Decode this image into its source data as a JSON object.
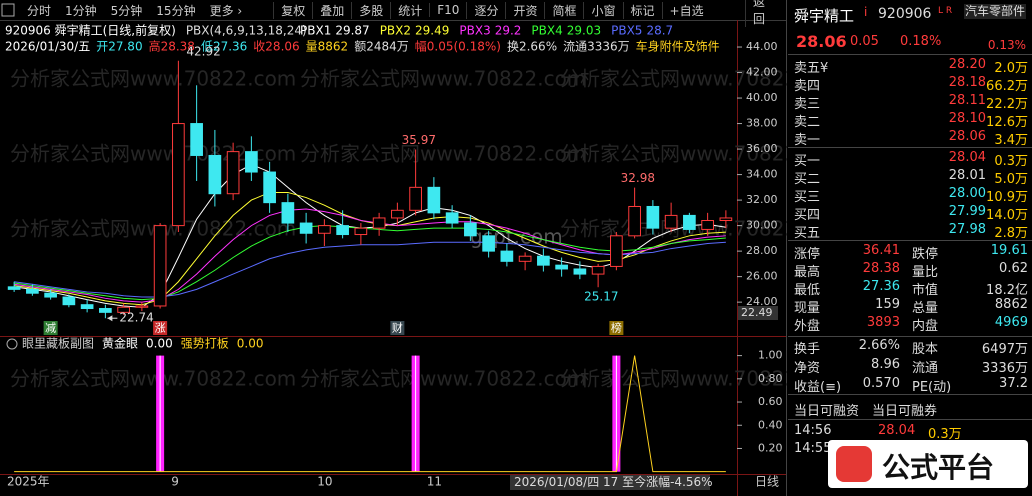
{
  "toolbar": {
    "left": [
      "分时",
      "1分钟",
      "5分钟",
      "15分钟",
      "更多 ›"
    ],
    "right": [
      "复权",
      "叠加",
      "多股",
      "统计",
      "F10",
      "逐分",
      "开资",
      "简框",
      "小窗",
      "标记",
      "+自选"
    ],
    "back": "返回"
  },
  "watermark": "分析家公式网www.70822.com",
  "site": "gspt.com",
  "chart_data": [
    {
      "type": "candlestick",
      "title": "920906 舜宇精工(日线,前复权)",
      "indicator": "PBX(4,6,9,13,18,24)",
      "info": [
        "2026/01/30/五",
        "开27.80",
        "高28.38",
        "低27.36",
        "收28.06",
        "量8862",
        "额2484万",
        "幅0.05(0.18%)",
        "换2.66%",
        "流通3336万",
        "车身附件及饰件"
      ],
      "categories": [
        "2025年",
        null,
        null,
        null,
        null,
        null,
        null,
        null,
        null,
        "9",
        null,
        null,
        null,
        null,
        null,
        null,
        null,
        "10",
        null,
        null,
        null,
        null,
        null,
        "11",
        null,
        null,
        null,
        null,
        null,
        null,
        null,
        null,
        null,
        null,
        null,
        null,
        null,
        null,
        null,
        null
      ],
      "open": [
        25.2,
        25.0,
        24.7,
        24.4,
        23.8,
        23.5,
        23.2,
        23.6,
        23.7,
        30.0,
        38.0,
        35.5,
        32.5,
        35.8,
        34.2,
        31.8,
        30.2,
        29.4,
        30.0,
        29.3,
        29.8,
        30.6,
        31.2,
        33.0,
        31.0,
        30.2,
        29.2,
        28.0,
        27.2,
        27.6,
        26.9,
        26.6,
        26.2,
        26.8,
        29.2,
        31.5,
        29.8,
        30.8,
        29.7,
        30.4
      ],
      "high": [
        25.6,
        25.4,
        25.0,
        24.6,
        24.2,
        23.8,
        23.9,
        24.0,
        30.2,
        42.92,
        41.0,
        37.5,
        36.5,
        37.0,
        35.0,
        32.5,
        31.0,
        30.5,
        31.2,
        30.2,
        31.0,
        31.8,
        35.97,
        33.8,
        31.6,
        30.8,
        29.6,
        28.6,
        27.9,
        28.2,
        27.5,
        27.2,
        27.0,
        29.5,
        32.98,
        32.0,
        31.8,
        31.0,
        31.0,
        31.2
      ],
      "low": [
        24.8,
        24.5,
        24.2,
        23.6,
        23.2,
        22.74,
        23.0,
        23.3,
        23.5,
        29.5,
        33.5,
        31.5,
        32.0,
        33.5,
        31.0,
        29.5,
        28.6,
        28.4,
        29.0,
        28.5,
        29.2,
        30.0,
        30.8,
        30.5,
        29.8,
        28.8,
        27.5,
        26.8,
        26.5,
        26.4,
        26.0,
        25.8,
        25.17,
        26.5,
        29.0,
        29.3,
        29.5,
        29.4,
        29.2,
        29.8
      ],
      "close": [
        25.0,
        24.7,
        24.4,
        23.8,
        23.5,
        23.2,
        23.6,
        23.7,
        30.0,
        38.0,
        35.5,
        32.5,
        35.8,
        34.2,
        31.8,
        30.2,
        29.4,
        30.0,
        29.3,
        29.8,
        30.6,
        31.2,
        33.0,
        31.0,
        30.2,
        29.2,
        28.0,
        27.2,
        27.6,
        26.9,
        26.6,
        26.2,
        26.8,
        29.2,
        31.5,
        29.8,
        30.8,
        29.7,
        30.4,
        30.6
      ],
      "up_color": "#ff3b3b",
      "down_color": "#3ee8f0",
      "series": [
        {
          "name": "PBX1",
          "color": "#ffffff",
          "values": [
            25.2,
            25.0,
            24.8,
            24.5,
            24.2,
            23.9,
            23.7,
            23.6,
            24.6,
            27.5,
            30.5,
            32.5,
            34.0,
            34.8,
            34.2,
            33.0,
            31.8,
            30.8,
            30.0,
            29.8,
            29.9,
            30.2,
            31.0,
            31.4,
            31.2,
            30.8,
            30.0,
            29.0,
            28.2,
            27.6,
            27.2,
            26.9,
            26.7,
            27.1,
            28.0,
            29.0,
            29.6,
            30.0,
            30.1,
            29.87
          ]
        },
        {
          "name": "PBX2",
          "color": "#ffff33",
          "values": [
            25.3,
            25.1,
            24.9,
            24.7,
            24.4,
            24.1,
            23.9,
            23.8,
            24.2,
            25.6,
            27.4,
            29.2,
            30.8,
            32.0,
            32.6,
            32.6,
            32.2,
            31.6,
            30.9,
            30.4,
            30.1,
            30.0,
            30.3,
            30.6,
            30.7,
            30.6,
            30.2,
            29.6,
            29.0,
            28.4,
            27.9,
            27.5,
            27.2,
            27.3,
            27.7,
            28.3,
            28.8,
            29.2,
            29.4,
            29.49
          ]
        },
        {
          "name": "PBX3",
          "color": "#ff33ff",
          "values": [
            25.4,
            25.2,
            25.0,
            24.8,
            24.6,
            24.3,
            24.1,
            24.0,
            24.2,
            25.0,
            26.2,
            27.6,
            28.9,
            30.0,
            30.8,
            31.2,
            31.3,
            31.1,
            30.8,
            30.4,
            30.2,
            30.0,
            30.1,
            30.2,
            30.3,
            30.3,
            30.1,
            29.8,
            29.4,
            28.9,
            28.5,
            28.1,
            27.8,
            27.7,
            27.9,
            28.2,
            28.6,
            28.9,
            29.1,
            29.2
          ]
        },
        {
          "name": "PBX4",
          "color": "#33ff33",
          "values": [
            25.5,
            25.3,
            25.1,
            24.9,
            24.7,
            24.5,
            24.3,
            24.2,
            24.3,
            24.8,
            25.6,
            26.5,
            27.5,
            28.4,
            29.1,
            29.6,
            29.9,
            30.0,
            29.9,
            29.8,
            29.7,
            29.6,
            29.7,
            29.8,
            29.8,
            29.8,
            29.7,
            29.5,
            29.2,
            28.9,
            28.6,
            28.3,
            28.1,
            28.0,
            28.1,
            28.3,
            28.6,
            28.8,
            28.9,
            29.03
          ]
        },
        {
          "name": "PBX5",
          "color": "#5a6bff",
          "values": [
            25.6,
            25.4,
            25.2,
            25.0,
            24.8,
            24.7,
            24.5,
            24.4,
            24.4,
            24.6,
            25.0,
            25.6,
            26.2,
            26.8,
            27.4,
            27.8,
            28.1,
            28.3,
            28.4,
            28.5,
            28.5,
            28.5,
            28.6,
            28.7,
            28.7,
            28.7,
            28.7,
            28.6,
            28.5,
            28.3,
            28.1,
            27.9,
            27.8,
            27.7,
            27.8,
            27.9,
            28.2,
            28.4,
            28.6,
            28.7
          ]
        }
      ],
      "events": [
        {
          "index": 2,
          "label": "减",
          "color": "#2e7d32"
        },
        {
          "index": 8,
          "label": "涨",
          "color": "#c62828"
        },
        {
          "index": 21,
          "label": "财",
          "color": "#37474f"
        },
        {
          "index": 33,
          "label": "榜",
          "color": "#8d6e00"
        }
      ],
      "ylim": [
        22.6,
        45.1
      ],
      "yticks": [
        {
          "value": 24,
          "label": "24.00"
        },
        {
          "value": 26,
          "label": "26.00"
        },
        {
          "value": 28,
          "label": "28.00"
        },
        {
          "value": 30,
          "label": "30.00"
        },
        {
          "value": 32,
          "label": "32.00"
        },
        {
          "value": 34,
          "label": "34.00"
        },
        {
          "value": 36,
          "label": "36.00"
        },
        {
          "value": 38,
          "label": "38.00"
        },
        {
          "value": 40,
          "label": "40.00"
        },
        {
          "value": 42,
          "label": "42.00"
        },
        {
          "value": 44,
          "label": "44.00"
        }
      ],
      "axis_marker": "22.49",
      "footer": "2026/01/08/四 17 至今涨幅-4.56%",
      "period": "日线"
    },
    {
      "type": "combo",
      "title": "眼里藏板副图",
      "series": [
        {
          "name": "黄金眼",
          "readout": "0.00",
          "type": "bar",
          "color": "#ff22ff",
          "values": [
            0,
            0,
            0,
            0,
            0,
            0,
            0,
            0,
            1,
            0,
            0,
            0,
            0,
            0,
            0,
            0,
            0,
            0,
            0,
            0,
            0,
            0,
            1,
            0,
            0,
            0,
            0,
            0,
            0,
            0,
            0,
            0,
            0,
            1,
            0,
            0,
            0,
            0,
            0,
            0
          ]
        },
        {
          "name": "强势打板",
          "readout": "0.00",
          "type": "line",
          "color": "#ffd21f",
          "values": [
            0,
            0,
            0,
            0,
            0,
            0,
            0,
            0,
            0,
            0,
            0,
            0,
            0,
            0,
            0,
            0,
            0,
            0,
            0,
            0,
            0,
            0,
            0,
            0,
            0,
            0,
            0,
            0,
            0,
            0,
            0,
            0,
            0,
            0,
            1,
            0,
            0,
            0,
            0,
            0
          ]
        }
      ],
      "ylim": [
        -0.02,
        1.1
      ],
      "yticks": [
        {
          "value": 0.2,
          "label": "0.20"
        },
        {
          "value": 0.4,
          "label": "0.40"
        },
        {
          "value": 0.6,
          "label": "0.60"
        },
        {
          "value": 0.8,
          "label": "0.80"
        },
        {
          "value": 1,
          "label": "1.00"
        }
      ]
    }
  ],
  "quote": {
    "name": "舜宇精工",
    "badge": "i",
    "code": "920906",
    "flags": "L R",
    "industry": "汽车零部件",
    "industry_change": "0.13%",
    "price": "28.06",
    "change": "0.05",
    "change_pct": "0.18%",
    "asks": [
      [
        "卖五¥",
        "28.20",
        "2.0万"
      ],
      [
        "卖四",
        "28.18",
        "66.2万"
      ],
      [
        "卖三",
        "28.11",
        "22.2万"
      ],
      [
        "卖二",
        "28.10",
        "12.6万"
      ],
      [
        "卖一",
        "28.06",
        "3.4万"
      ]
    ],
    "bids": [
      [
        "买一",
        "28.04",
        "0.3万"
      ],
      [
        "买二",
        "28.01",
        "5.0万"
      ],
      [
        "买三",
        "28.00",
        "10.9万"
      ],
      [
        "买四",
        "27.99",
        "14.0万"
      ],
      [
        "买五",
        "27.98",
        "2.8万"
      ]
    ],
    "stats": [
      [
        "涨停",
        "36.41",
        "跌停",
        "19.61"
      ],
      [
        "最高",
        "28.38",
        "量比",
        "0.62"
      ],
      [
        "最低",
        "27.36",
        "市值",
        "18.2亿"
      ],
      [
        "现量",
        "159",
        "总量",
        "8862"
      ],
      [
        "外盘",
        "3893",
        "内盘",
        "4969"
      ]
    ],
    "fundamentals": [
      [
        "换手",
        "2.66%",
        "股本",
        "6497万"
      ],
      [
        "净资",
        "8.96",
        "流通",
        "3336万"
      ],
      [
        "收益(≡)",
        "0.570",
        "PE(动)",
        "37.2"
      ]
    ],
    "margin": [
      "当日可融资",
      "当日可融券"
    ],
    "ticks": [
      [
        "14:56",
        "28.04",
        "0.3万"
      ],
      [
        "14:55"
      ]
    ]
  },
  "logo": "公式平台"
}
